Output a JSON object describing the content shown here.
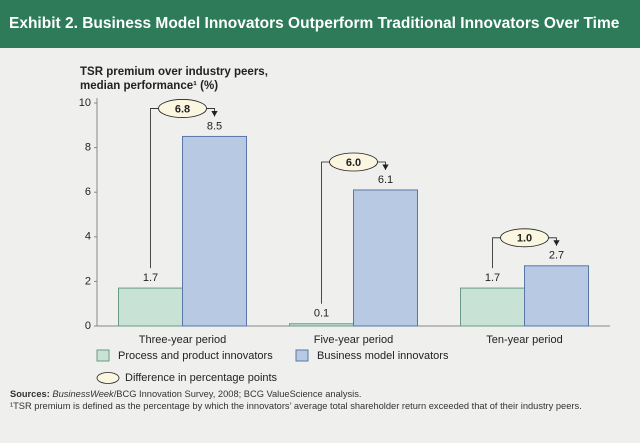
{
  "chart_data": {
    "type": "bar",
    "title": "Exhibit 2. Business Model Innovators Outperform Traditional Innovators Over Time",
    "y_label": [
      "TSR premium over industry peers,",
      "median performance¹ (%)"
    ],
    "categories": [
      "Three-year period",
      "Five-year period",
      "Ten-year period"
    ],
    "series": [
      {
        "name": "Process and product innovators",
        "color": "#c9e2d6",
        "values": [
          1.7,
          0.1,
          1.7
        ]
      },
      {
        "name": "Business model innovators",
        "color": "#b8c9e4",
        "values": [
          8.5,
          6.1,
          2.7
        ]
      }
    ],
    "differences": {
      "name": "Difference in percentage points",
      "values": [
        6.8,
        6,
        1
      ],
      "value_labels": [
        "6.8",
        "6.0",
        "1.0"
      ]
    },
    "ylim": [
      0,
      10
    ],
    "yticks": [
      0,
      2,
      4,
      6,
      8,
      10
    ],
    "sources": {
      "label": "Sources:",
      "italic": "BusinessWeek",
      "text": "/BCG Innovation Survey, 2008; BCG ValueScience analysis."
    },
    "footnote": "¹TSR premium is defined as the percentage by which the innovators’ average total shareholder return exceeded that of their industry peers."
  }
}
